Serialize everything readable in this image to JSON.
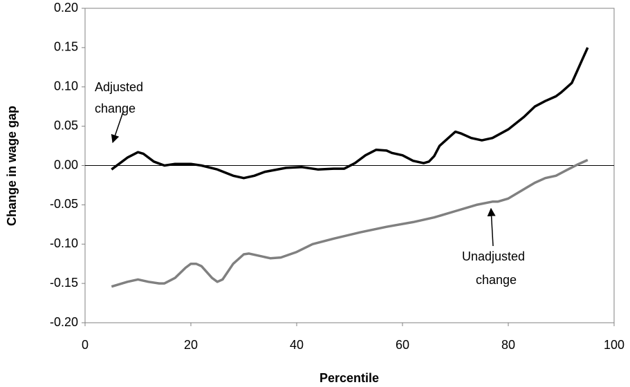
{
  "chart_data": {
    "type": "line",
    "x_label": "Percentile",
    "y_label": "Change in wage gap",
    "xlim": [
      0,
      100
    ],
    "xticks": [
      0,
      20,
      40,
      60,
      80,
      100
    ],
    "ylim": [
      -0.2,
      0.2
    ],
    "yticks": [
      {
        "value": -0.2,
        "label": "-0.20"
      },
      {
        "value": -0.15,
        "label": "-0.15"
      },
      {
        "value": -0.1,
        "label": "-0.10"
      },
      {
        "value": -0.05,
        "label": "-0.05"
      },
      {
        "value": 0,
        "label": "0.00"
      },
      {
        "value": 0.05,
        "label": "0.05"
      },
      {
        "value": 0.1,
        "label": "0.10"
      },
      {
        "value": 0.15,
        "label": "0.15"
      },
      {
        "value": 0.2,
        "label": "0.20"
      }
    ],
    "grid": false,
    "series": [
      {
        "name": "Adjusted change",
        "color": "#000000",
        "x": [
          5,
          7,
          8,
          10,
          11,
          13,
          15,
          17,
          20,
          22,
          25,
          28,
          30,
          32,
          34,
          38,
          41,
          44,
          47,
          49,
          51,
          53,
          55,
          57,
          58,
          60,
          62,
          64,
          65,
          66,
          67,
          69,
          70,
          71,
          73,
          75,
          77,
          80,
          83,
          85,
          87,
          89,
          90,
          92,
          93,
          94,
          95
        ],
        "values": [
          -0.005,
          0.005,
          0.01,
          0.017,
          0.015,
          0.005,
          0.0,
          0.002,
          0.002,
          0.0,
          -0.005,
          -0.013,
          -0.016,
          -0.013,
          -0.008,
          -0.003,
          -0.002,
          -0.005,
          -0.004,
          -0.004,
          0.003,
          0.013,
          0.02,
          0.019,
          0.016,
          0.013,
          0.006,
          0.003,
          0.005,
          0.012,
          0.025,
          0.037,
          0.043,
          0.041,
          0.035,
          0.032,
          0.035,
          0.046,
          0.062,
          0.075,
          0.082,
          0.088,
          0.093,
          0.105,
          0.12,
          0.135,
          0.15
        ]
      },
      {
        "name": "Unadjusted change",
        "color": "#808080",
        "x": [
          5,
          8,
          10,
          12,
          14,
          15,
          17,
          19,
          20,
          21,
          22,
          24,
          25,
          26,
          28,
          30,
          31,
          33,
          35,
          37,
          40,
          43,
          47,
          52,
          57,
          62,
          66,
          70,
          74,
          77,
          78,
          80,
          83,
          85,
          87,
          89,
          91,
          93,
          95
        ],
        "values": [
          -0.154,
          -0.148,
          -0.145,
          -0.148,
          -0.15,
          -0.15,
          -0.143,
          -0.13,
          -0.125,
          -0.125,
          -0.128,
          -0.143,
          -0.148,
          -0.145,
          -0.125,
          -0.113,
          -0.112,
          -0.115,
          -0.118,
          -0.117,
          -0.11,
          -0.1,
          -0.093,
          -0.085,
          -0.078,
          -0.072,
          -0.066,
          -0.058,
          -0.05,
          -0.046,
          -0.046,
          -0.042,
          -0.03,
          -0.022,
          -0.016,
          -0.013,
          -0.006,
          0.001,
          0.007
        ]
      }
    ],
    "annotations": [
      {
        "lines": [
          "Adjusted",
          "change"
        ]
      },
      {
        "lines": [
          "Unadjusted",
          "change"
        ]
      }
    ]
  }
}
